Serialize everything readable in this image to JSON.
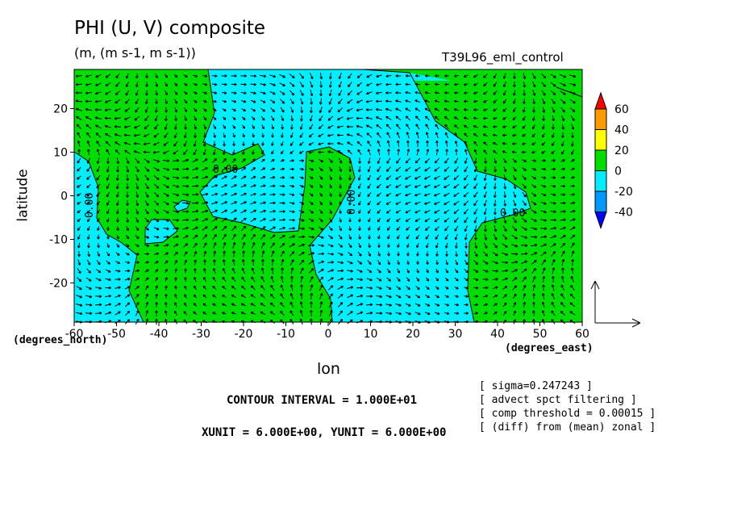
{
  "chart_data": {
    "type": "contour",
    "title": "PHI (U, V) composite",
    "subtitle": "(m, (m s-1, m s-1))",
    "run_name": "T39L96_eml_control",
    "xlabel": "lon",
    "x_units": "(degrees_east)",
    "y_units": "(degrees_north)",
    "ylabel": "latitude",
    "xlim": [
      -60,
      60
    ],
    "ylim": [
      -29,
      29
    ],
    "x_ticks": [
      -60,
      -50,
      -40,
      -30,
      -20,
      -10,
      0,
      10,
      20,
      30,
      40,
      50,
      60
    ],
    "y_ticks": [
      20,
      10,
      0,
      -10,
      -20
    ],
    "contour_labels": [
      "0.00",
      "0.00",
      "0.00",
      "0.00"
    ],
    "colorbar": {
      "levels": [
        60,
        40,
        20,
        0,
        -20,
        -40
      ],
      "colors": [
        "#ff0000",
        "#ff9900",
        "#ffff00",
        "#00dd00",
        "#00eeff",
        "#0099ff",
        "#0000ff"
      ]
    },
    "filled_colors": {
      "positive": "#00dd00",
      "negative": "#00eeff"
    },
    "contour_interval": "CONTOUR INTERVAL = 1.000E+01",
    "vector_units": "XUNIT = 6.000E+00, YUNIT = 6.000E+00",
    "notes": [
      "[ sigma=0.247243 ]",
      "[ advect spct filtering ]",
      "[ comp threshold = 0.00015 ]",
      "[ (diff) from (mean) zonal ]"
    ]
  }
}
